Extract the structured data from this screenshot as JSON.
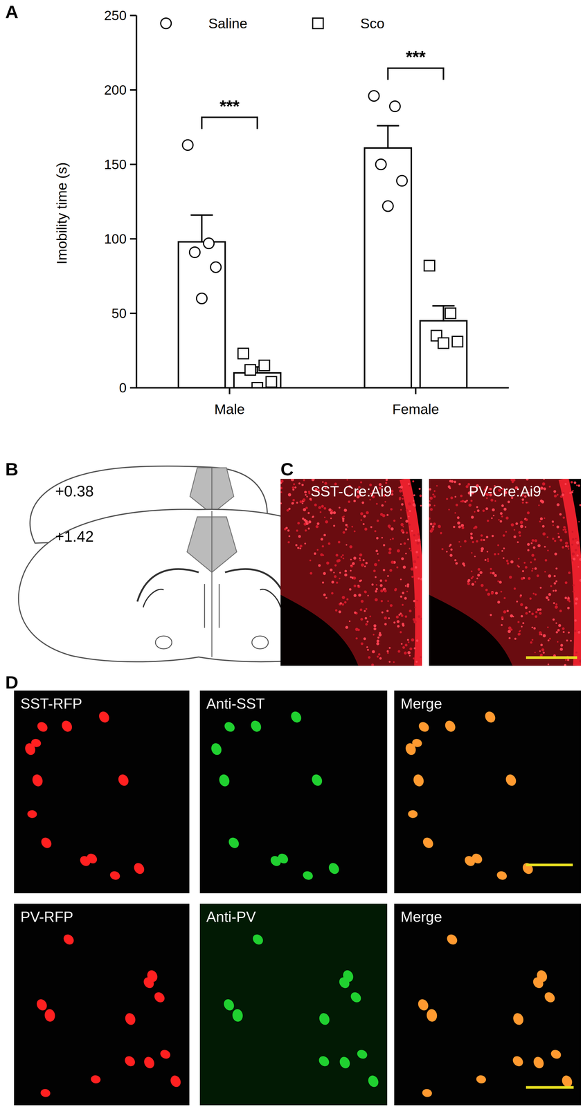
{
  "chart_data": {
    "type": "bar",
    "categories": [
      "Male",
      "Female"
    ],
    "y_label": "Imobility time (s)",
    "ylim": [
      0,
      250
    ],
    "yticks": [
      0,
      50,
      100,
      150,
      200,
      250
    ],
    "legend": "top",
    "series": [
      {
        "name": "Saline",
        "color": "#ffffff",
        "marker": "circle",
        "values": [
          98,
          161
        ],
        "errors": [
          18,
          15
        ],
        "points": [
          [
            163,
            97,
            91,
            81,
            60
          ],
          [
            196,
            189,
            150,
            139,
            122
          ]
        ]
      },
      {
        "name": "Sco",
        "color": "#ffffff",
        "marker": "square",
        "values": [
          10,
          45
        ],
        "errors": [
          4,
          10
        ],
        "points": [
          [
            23,
            15,
            12,
            4,
            0
          ],
          [
            82,
            50,
            35,
            31,
            30
          ]
        ]
      }
    ],
    "annotations": [
      {
        "text": "***",
        "category": 0
      },
      {
        "text": "***",
        "category": 1
      }
    ]
  },
  "panel_labels": [
    "A",
    "B",
    "C",
    "D"
  ],
  "diagram": {
    "sections": [
      "+0.38",
      "+1.42"
    ]
  },
  "images_c": [
    "SST-Cre:Ai9",
    "PV-Cre:Ai9"
  ],
  "images_d": [
    [
      "SST-RFP",
      "Anti-SST",
      "Merge"
    ],
    [
      "PV-RFP",
      "Anti-PV",
      "Merge"
    ]
  ]
}
